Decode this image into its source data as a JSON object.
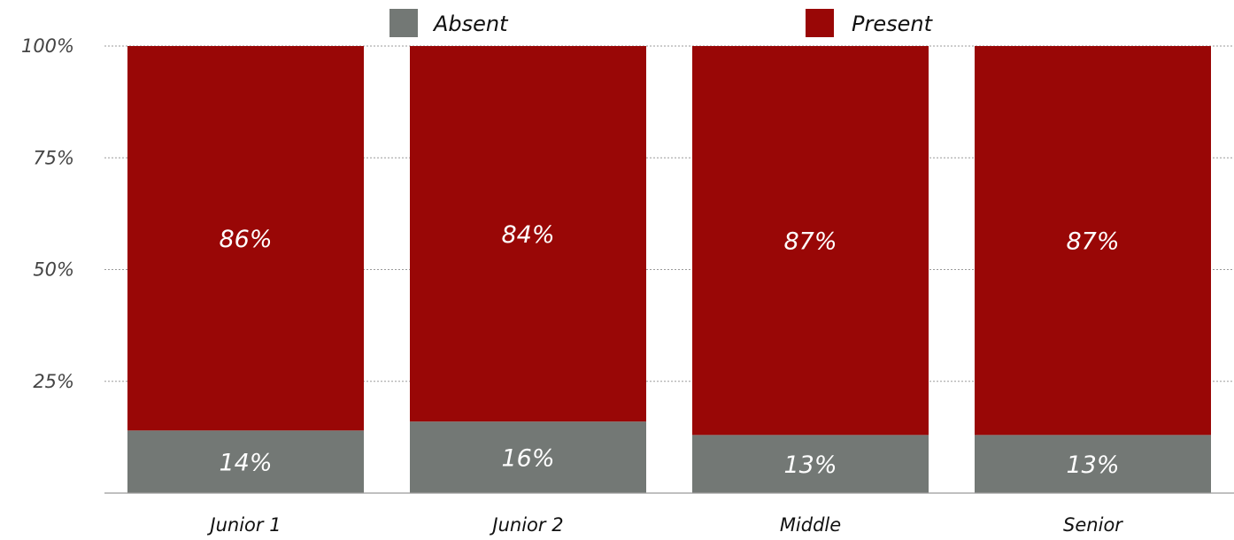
{
  "chart_data": {
    "type": "bar",
    "stacked": true,
    "percent": true,
    "categories": [
      "Junior 1",
      "Junior 2",
      "Middle",
      "Senior"
    ],
    "series": [
      {
        "name": "Absent",
        "color": "#737875",
        "values": [
          14,
          16,
          13,
          13
        ],
        "labels": [
          "14%",
          "16%",
          "13%",
          "13%"
        ]
      },
      {
        "name": "Present",
        "color": "#990706",
        "values": [
          86,
          84,
          87,
          87
        ],
        "labels": [
          "86%",
          "84%",
          "87%",
          "87%"
        ]
      }
    ],
    "yticks": [
      25,
      50,
      75,
      100
    ],
    "ytick_labels": [
      "25%",
      "50%",
      "75%",
      "100%"
    ],
    "ylim": [
      0,
      100
    ],
    "grid": true,
    "legend": "top-center",
    "title": "",
    "xlabel": "",
    "ylabel": ""
  }
}
